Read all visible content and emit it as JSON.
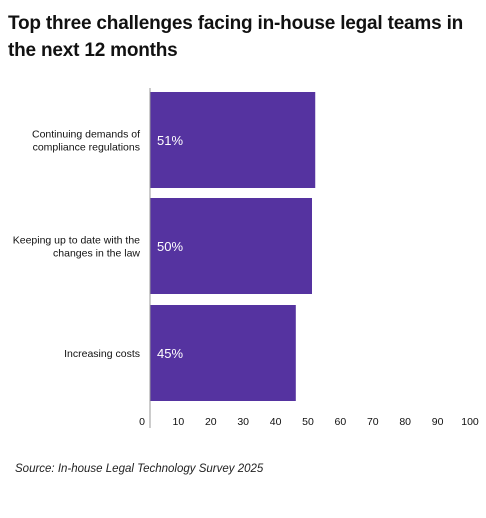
{
  "chart_data": {
    "type": "bar",
    "orientation": "horizontal",
    "title": "Top three challenges facing in-house legal teams in the next 12 months",
    "categories": [
      "Continuing demands of compliance regulations",
      "Keeping up to date with the changes in the law",
      "Increasing costs"
    ],
    "category_lines": [
      [
        "Continuing demands of",
        "compliance regulations"
      ],
      [
        "Keeping up to date with the",
        "changes in the law"
      ],
      [
        "Increasing costs"
      ]
    ],
    "values": [
      51,
      50,
      45
    ],
    "data_labels": [
      "51%",
      "50%",
      "45%"
    ],
    "xlim": [
      0,
      100
    ],
    "x_ticks": [
      0,
      10,
      20,
      30,
      40,
      50,
      60,
      70,
      80,
      90,
      100
    ],
    "xlabel": "",
    "ylabel": "",
    "grid": false,
    "legend": "none",
    "bar_color": "#5533a0",
    "label_color": "#ffffff",
    "source": "Source: In-house Legal Technology Survey 2025"
  }
}
